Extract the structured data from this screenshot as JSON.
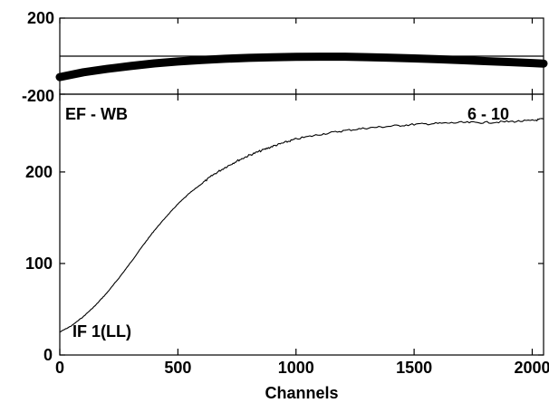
{
  "chart_data": [
    {
      "type": "line",
      "panel": "top",
      "ylim": [
        -200,
        200
      ],
      "xlim": [
        0,
        2048
      ],
      "y_tick_labels": [
        "200",
        "-200"
      ],
      "y_ticks": [
        200,
        -200
      ],
      "reference_line_y": 0,
      "series": [
        {
          "x": [
            0,
            100,
            200,
            300,
            400,
            500,
            600,
            700,
            800,
            900,
            1000,
            1100,
            1200,
            1300,
            1400,
            1500,
            1600,
            1700,
            1800,
            1900,
            2000,
            2048
          ],
          "values": [
            -110,
            -85,
            -67,
            -52,
            -38,
            -28,
            -20,
            -14,
            -9,
            -6,
            -4,
            -3,
            -3,
            -5,
            -8,
            -12,
            -16,
            -21,
            -26,
            -31,
            -36,
            -39
          ]
        }
      ]
    },
    {
      "type": "line",
      "panel": "bottom",
      "xlabel": "Channels",
      "xlim": [
        0,
        2048
      ],
      "ylim": [
        0,
        285
      ],
      "x_ticks": [
        0,
        500,
        1000,
        1500,
        2000
      ],
      "x_tick_labels": [
        "0",
        "500",
        "1000",
        "1500",
        "2000"
      ],
      "y_ticks": [
        0,
        100,
        200
      ],
      "y_tick_labels": [
        "0",
        "100",
        "200"
      ],
      "annotations": {
        "top_left": "EF - WB",
        "top_right": "6 - 10",
        "bottom_left": "IF 1(LL)"
      },
      "series": [
        {
          "x": [
            0,
            50,
            100,
            150,
            200,
            250,
            300,
            350,
            400,
            450,
            500,
            550,
            600,
            650,
            700,
            750,
            800,
            850,
            900,
            950,
            1000,
            1100,
            1200,
            1300,
            1400,
            1500,
            1600,
            1700,
            1800,
            1900,
            2000,
            2048
          ],
          "values": [
            25,
            32,
            42,
            54,
            68,
            84,
            101,
            119,
            136,
            151,
            165,
            177,
            187,
            197,
            205,
            212,
            218,
            223,
            228,
            232,
            236,
            241,
            245,
            248,
            250,
            252,
            253,
            254,
            254,
            255,
            256,
            258
          ]
        }
      ]
    }
  ]
}
